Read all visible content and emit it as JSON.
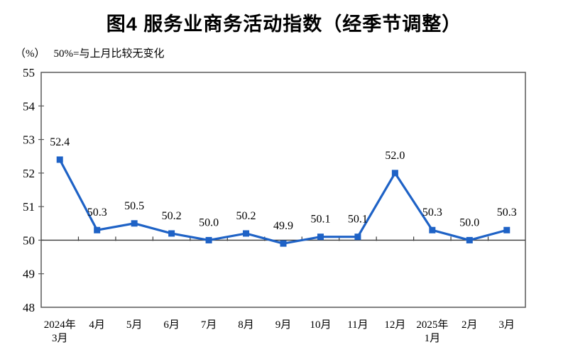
{
  "chart": {
    "title": "图4 服务业商务活动指数（经季节调整）",
    "unit_label": "（%）",
    "reference_note": "50%=与上月比较无变化"
  },
  "chart_data": {
    "type": "line",
    "title": "图4 服务业商务活动指数（经季节调整）",
    "subtitle": "（%） 50%=与上月比较无变化",
    "categories": [
      "2024年\n3月",
      "4月",
      "5月",
      "6月",
      "7月",
      "8月",
      "9月",
      "10月",
      "11月",
      "12月",
      "2025年\n1月",
      "2月",
      "3月"
    ],
    "values": [
      52.4,
      50.3,
      50.5,
      50.2,
      50.0,
      50.2,
      49.9,
      50.1,
      50.1,
      52.0,
      50.3,
      50.0,
      50.3
    ],
    "data_labels": [
      "52.4",
      "50.3",
      "50.5",
      "50.2",
      "50.0",
      "50.2",
      "49.9",
      "50.1",
      "50.1",
      "52.0",
      "50.3",
      "50.0",
      "50.3"
    ],
    "xlabel": "",
    "ylabel": "（%）",
    "ylim": [
      48,
      55
    ],
    "ytick_step": 1,
    "reference_line": 50,
    "grid": "off",
    "legend": "none",
    "line_color": "#1E62C6",
    "marker_shape": "square",
    "axis_color": "#595959",
    "reference_line_color": "#3a3a3a",
    "text_color": "#000000"
  }
}
